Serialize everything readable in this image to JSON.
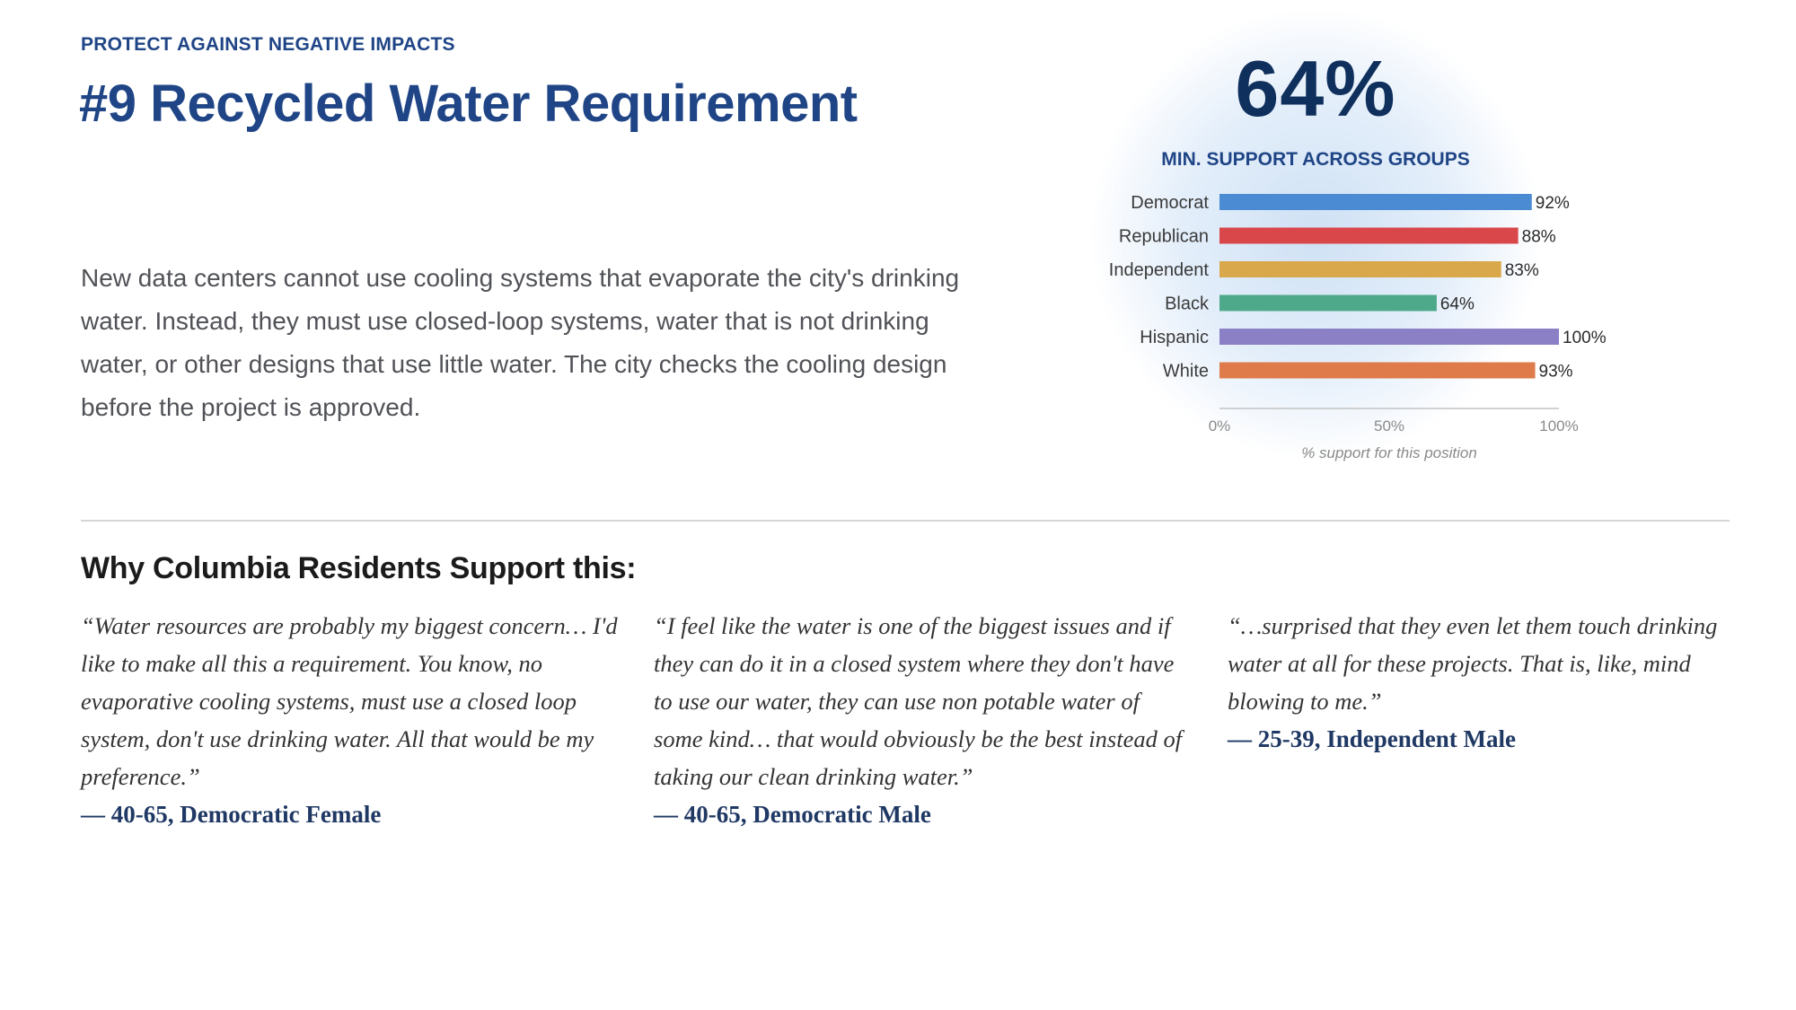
{
  "header": {
    "eyebrow": "PROTECT AGAINST NEGATIVE IMPACTS",
    "title": "#9 Recycled Water Requirement"
  },
  "description": "New data centers cannot use cooling systems that evaporate the city's drinking water. Instead, they must use closed-loop systems, water that is not drinking water, or other designs that use little water. The city checks the cooling design before the project is approved.",
  "summary": {
    "value": "64%",
    "label": "MIN. SUPPORT ACROSS GROUPS"
  },
  "chart_data": {
    "type": "bar",
    "orientation": "horizontal",
    "categories": [
      "Democrat",
      "Republican",
      "Independent",
      "Black",
      "Hispanic",
      "White"
    ],
    "values": [
      92,
      88,
      83,
      64,
      100,
      93
    ],
    "value_labels": [
      "92%",
      "88%",
      "83%",
      "64%",
      "100%",
      "93%"
    ],
    "colors": [
      "#4a8bd4",
      "#d9474b",
      "#d9a84a",
      "#4ea98a",
      "#8b7fc6",
      "#df7b4a"
    ],
    "xlim": [
      0,
      100
    ],
    "xticks": [
      "0%",
      "50%",
      "100%"
    ],
    "xlabel": "% support for this position",
    "ylabel": "",
    "grid": false,
    "legend": "none"
  },
  "section_title": "Why Columbia Residents Support this:",
  "quotes": [
    {
      "text": "“Water resources are probably my biggest concern… I'd like to make all this a requirement. You know, no evaporative cooling systems, must use a closed loop system, don't use drinking water. All that would be my preference.”",
      "attribution": "— 40-65, Democratic Female"
    },
    {
      "text": "“I feel like the water is one of the biggest issues and if they can do it in a closed system where they don't have to use our water, they can use non potable water of some kind… that would obviously be the best instead of taking our clean drinking water.”",
      "attribution": "— 40-65, Democratic Male"
    },
    {
      "text": "“…surprised that they even let them touch drinking water at all for these projects. That is, like, mind blowing to me.”",
      "attribution": "— 25-39, Independent Male"
    }
  ]
}
